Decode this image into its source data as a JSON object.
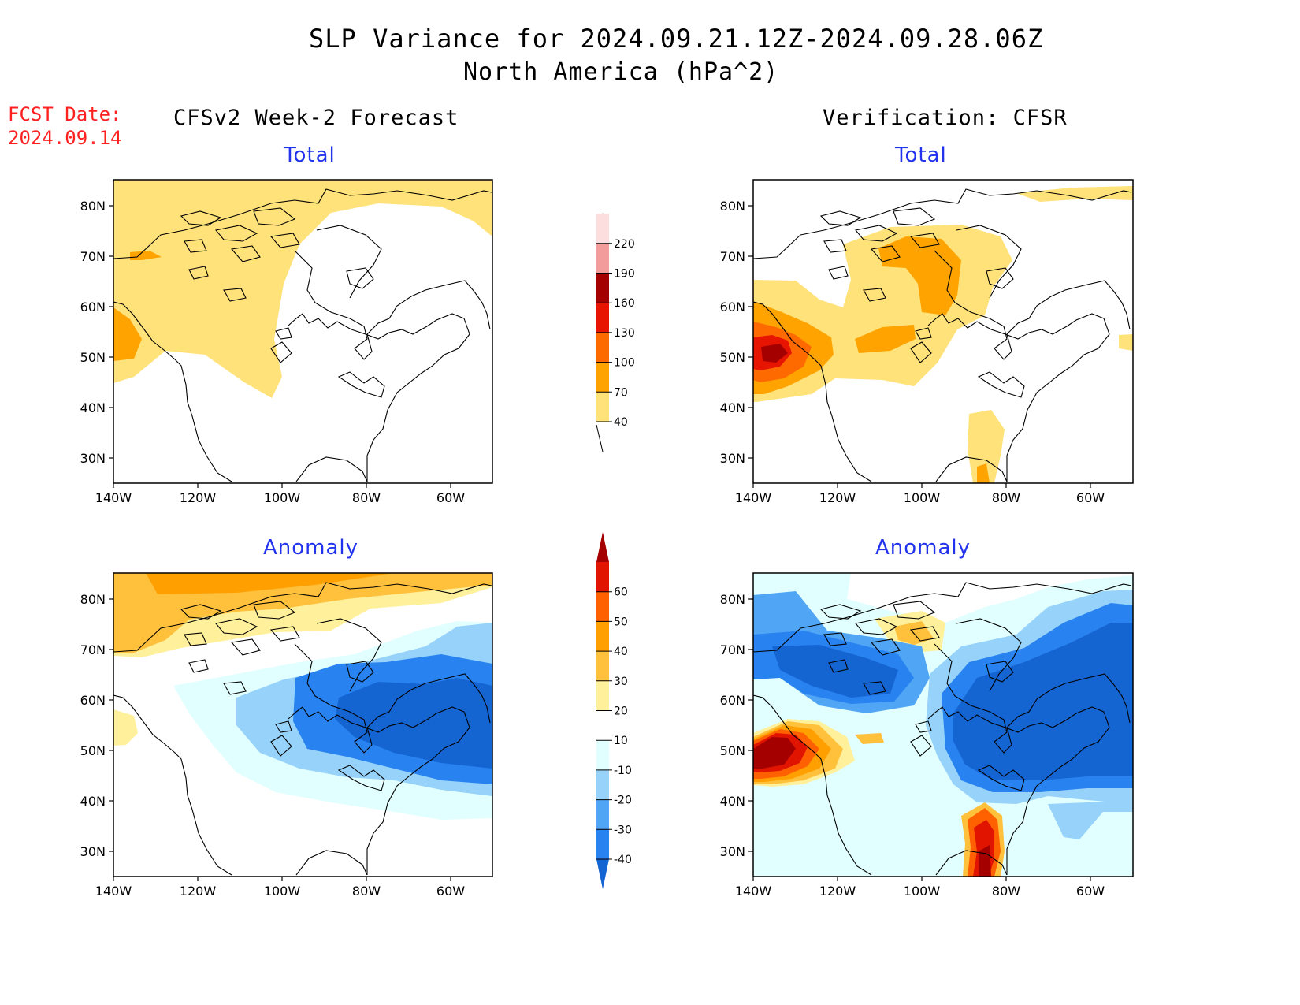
{
  "header": {
    "title": "SLP Variance for 2024.09.21.12Z-2024.09.28.06Z",
    "subtitle": "North America (hPa^2)",
    "fcst_date_label": "FCST Date:",
    "fcst_date_value": "2024.09.14"
  },
  "columns": {
    "forecast": "CFSv2 Week-2 Forecast",
    "verification": "Verification: CFSR"
  },
  "panels": {
    "total_label": "Total",
    "anomaly_label": "Anomaly"
  },
  "axes": {
    "lat_ticks": [
      "80N",
      "70N",
      "60N",
      "50N",
      "40N",
      "30N"
    ],
    "lon_ticks": [
      "140W",
      "120W",
      "100W",
      "80W",
      "60W"
    ]
  },
  "colorbar_total": {
    "levels": [
      "40",
      "70",
      "100",
      "130",
      "160",
      "190",
      "220"
    ],
    "colors": [
      "#ffe27a",
      "#ffa300",
      "#ff6a00",
      "#e61400",
      "#a50000",
      "#f29c9c",
      "#fcdede"
    ]
  },
  "colorbar_anomaly": {
    "levels": [
      "-40",
      "-30",
      "-20",
      "-10",
      "10",
      "20",
      "30",
      "40",
      "50",
      "60"
    ],
    "colors": [
      "#1464d2",
      "#2882f0",
      "#50a5f5",
      "#96d2fa",
      "#e1ffff",
      "#ffffff",
      "#fff09b",
      "#ffc03c",
      "#ffa000",
      "#ff6000",
      "#e11400",
      "#a50000"
    ]
  }
}
